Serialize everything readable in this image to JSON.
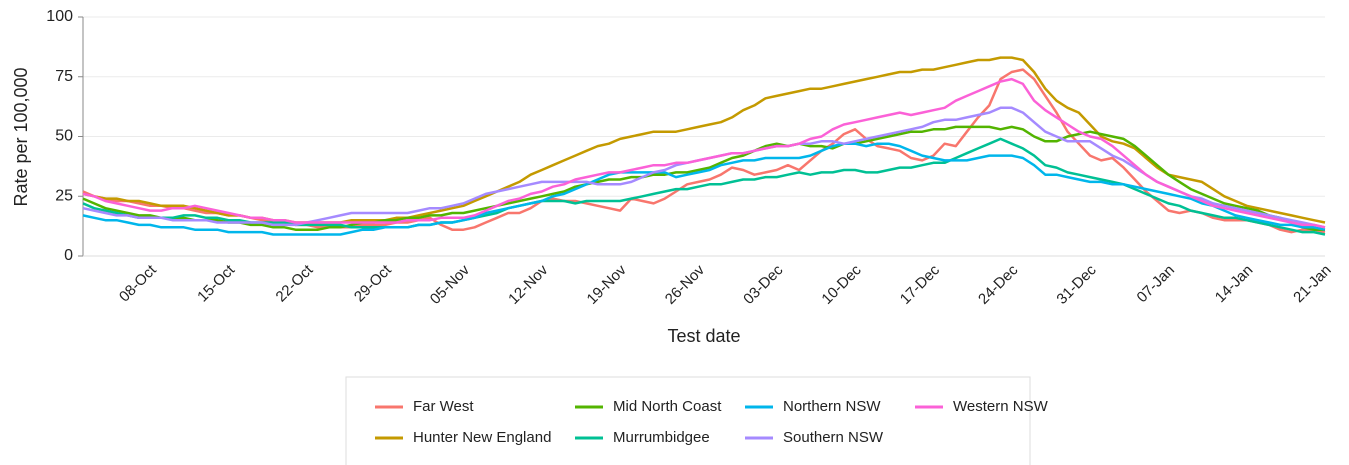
{
  "chart_data": {
    "type": "line",
    "x_label": "Test date",
    "y_label": "Rate per 100,000",
    "categories": [
      null,
      null,
      null,
      null,
      null,
      null,
      "08-Oct",
      null,
      null,
      null,
      null,
      null,
      null,
      "15-Oct",
      null,
      null,
      null,
      null,
      null,
      null,
      "22-Oct",
      null,
      null,
      null,
      null,
      null,
      null,
      "29-Oct",
      null,
      null,
      null,
      null,
      null,
      null,
      "05-Nov",
      null,
      null,
      null,
      null,
      null,
      null,
      "12-Nov",
      null,
      null,
      null,
      null,
      null,
      null,
      "19-Nov",
      null,
      null,
      null,
      null,
      null,
      null,
      "26-Nov",
      null,
      null,
      null,
      null,
      null,
      null,
      "03-Dec",
      null,
      null,
      null,
      null,
      null,
      null,
      "10-Dec",
      null,
      null,
      null,
      null,
      null,
      null,
      "17-Dec",
      null,
      null,
      null,
      null,
      null,
      null,
      "24-Dec",
      null,
      null,
      null,
      null,
      null,
      null,
      "31-Dec",
      null,
      null,
      null,
      null,
      null,
      null,
      "07-Jan",
      null,
      null,
      null,
      null,
      null,
      null,
      "14-Jan",
      null,
      null,
      null,
      null,
      null,
      null,
      "21-Jan"
    ],
    "series": [
      {
        "name": "Far West",
        "color": "#f8766d",
        "values": [
          27,
          25,
          24,
          23,
          23,
          22,
          21,
          21,
          20,
          20,
          19,
          18,
          18,
          17,
          17,
          16,
          15,
          14,
          14,
          13,
          13,
          12,
          12,
          12,
          12,
          13,
          13,
          13,
          14,
          14,
          15,
          16,
          13,
          11,
          11,
          12,
          14,
          16,
          18,
          18,
          20,
          23,
          24,
          23,
          23,
          22,
          21,
          20,
          19,
          24,
          23,
          22,
          24,
          27,
          30,
          31,
          32,
          34,
          37,
          36,
          34,
          35,
          36,
          38,
          36,
          40,
          44,
          47,
          51,
          53,
          49,
          46,
          45,
          44,
          41,
          40,
          42,
          47,
          46,
          52,
          58,
          63,
          74,
          77,
          78,
          74,
          67,
          60,
          52,
          47,
          42,
          40,
          41,
          37,
          32,
          27,
          23,
          19,
          18,
          19,
          18,
          16,
          15,
          15,
          15,
          14,
          13,
          11,
          10,
          11,
          11,
          10
        ]
      },
      {
        "name": "Hunter New England",
        "color": "#c49a00",
        "values": [
          26,
          25,
          24,
          24,
          23,
          23,
          22,
          21,
          21,
          21,
          20,
          19,
          18,
          17,
          17,
          16,
          16,
          15,
          15,
          14,
          14,
          14,
          14,
          14,
          15,
          15,
          15,
          15,
          16,
          16,
          17,
          18,
          19,
          20,
          21,
          23,
          25,
          27,
          29,
          31,
          34,
          36,
          38,
          40,
          42,
          44,
          46,
          47,
          49,
          50,
          51,
          52,
          52,
          52,
          53,
          54,
          55,
          56,
          58,
          61,
          63,
          66,
          67,
          68,
          69,
          70,
          70,
          71,
          72,
          73,
          74,
          75,
          76,
          77,
          77,
          78,
          78,
          79,
          80,
          81,
          82,
          82,
          83,
          83,
          82,
          77,
          70,
          65,
          62,
          60,
          55,
          50,
          48,
          47,
          45,
          41,
          37,
          34,
          33,
          32,
          31,
          28,
          25,
          23,
          21,
          20,
          19,
          18,
          17,
          16,
          15,
          14
        ]
      },
      {
        "name": "Mid North Coast",
        "color": "#53b400",
        "values": [
          24,
          22,
          20,
          19,
          18,
          17,
          17,
          16,
          16,
          16,
          15,
          15,
          15,
          14,
          14,
          13,
          13,
          12,
          12,
          11,
          11,
          11,
          12,
          12,
          13,
          14,
          14,
          15,
          15,
          16,
          16,
          17,
          17,
          18,
          18,
          19,
          20,
          21,
          22,
          23,
          24,
          25,
          26,
          27,
          29,
          30,
          31,
          32,
          32,
          33,
          33,
          34,
          34,
          35,
          35,
          36,
          37,
          39,
          41,
          42,
          44,
          46,
          47,
          46,
          47,
          46,
          46,
          45,
          47,
          47,
          48,
          49,
          50,
          51,
          52,
          52,
          53,
          53,
          54,
          54,
          54,
          54,
          53,
          54,
          53,
          50,
          48,
          48,
          50,
          51,
          52,
          51,
          50,
          49,
          46,
          42,
          38,
          34,
          31,
          28,
          26,
          24,
          22,
          21,
          20,
          19,
          17,
          16,
          14,
          12,
          11,
          11
        ]
      },
      {
        "name": "Murrumbidgee",
        "color": "#00c094",
        "values": [
          22,
          20,
          19,
          18,
          17,
          16,
          16,
          16,
          16,
          17,
          17,
          16,
          16,
          15,
          15,
          14,
          14,
          14,
          14,
          13,
          13,
          13,
          13,
          13,
          12,
          12,
          12,
          12,
          12,
          12,
          13,
          13,
          14,
          14,
          15,
          16,
          17,
          18,
          20,
          21,
          22,
          23,
          23,
          23,
          22,
          23,
          23,
          23,
          23,
          24,
          25,
          26,
          27,
          28,
          28,
          29,
          30,
          30,
          31,
          32,
          32,
          33,
          33,
          34,
          35,
          34,
          35,
          35,
          36,
          36,
          35,
          35,
          36,
          37,
          37,
          38,
          39,
          39,
          41,
          43,
          45,
          47,
          49,
          47,
          45,
          42,
          38,
          37,
          35,
          34,
          33,
          32,
          31,
          30,
          28,
          26,
          24,
          22,
          21,
          19,
          18,
          17,
          16,
          16,
          15,
          14,
          13,
          12,
          11,
          10,
          10,
          9
        ]
      },
      {
        "name": "Northern NSW",
        "color": "#00b6eb",
        "values": [
          17,
          16,
          15,
          15,
          14,
          13,
          13,
          12,
          12,
          12,
          11,
          11,
          11,
          10,
          10,
          10,
          10,
          9,
          9,
          9,
          9,
          9,
          9,
          9,
          10,
          11,
          11,
          12,
          12,
          12,
          13,
          13,
          14,
          14,
          15,
          16,
          18,
          19,
          20,
          21,
          22,
          23,
          25,
          26,
          28,
          30,
          32,
          34,
          35,
          35,
          35,
          35,
          35,
          33,
          34,
          35,
          36,
          38,
          39,
          40,
          40,
          41,
          41,
          41,
          41,
          42,
          44,
          46,
          47,
          47,
          46,
          47,
          47,
          46,
          44,
          42,
          41,
          40,
          40,
          40,
          41,
          42,
          42,
          42,
          41,
          38,
          34,
          34,
          33,
          32,
          31,
          31,
          30,
          30,
          29,
          28,
          27,
          26,
          25,
          24,
          22,
          21,
          19,
          17,
          16,
          15,
          14,
          13,
          13,
          12,
          12,
          11
        ]
      },
      {
        "name": "Southern NSW",
        "color": "#a58aff",
        "values": [
          20,
          19,
          18,
          17,
          17,
          16,
          16,
          16,
          15,
          15,
          15,
          15,
          14,
          14,
          14,
          14,
          14,
          13,
          13,
          13,
          14,
          15,
          16,
          17,
          18,
          18,
          18,
          18,
          18,
          18,
          19,
          20,
          20,
          21,
          22,
          24,
          26,
          27,
          28,
          29,
          30,
          31,
          31,
          31,
          31,
          31,
          30,
          30,
          30,
          31,
          33,
          35,
          36,
          38,
          39,
          40,
          41,
          42,
          43,
          43,
          44,
          45,
          46,
          46,
          47,
          47,
          48,
          48,
          47,
          48,
          49,
          50,
          51,
          52,
          53,
          54,
          56,
          57,
          57,
          58,
          59,
          60,
          62,
          62,
          60,
          56,
          52,
          50,
          48,
          48,
          48,
          45,
          42,
          40,
          37,
          34,
          31,
          29,
          27,
          25,
          24,
          22,
          21,
          20,
          19,
          18,
          17,
          16,
          15,
          14,
          13,
          12
        ]
      },
      {
        "name": "Western NSW",
        "color": "#fb61d7",
        "values": [
          26,
          25,
          23,
          22,
          21,
          20,
          19,
          19,
          20,
          20,
          21,
          20,
          19,
          18,
          17,
          16,
          16,
          15,
          15,
          14,
          14,
          14,
          14,
          14,
          14,
          14,
          14,
          14,
          14,
          15,
          15,
          15,
          16,
          16,
          16,
          17,
          19,
          21,
          23,
          24,
          26,
          27,
          29,
          30,
          32,
          33,
          34,
          35,
          35,
          36,
          37,
          38,
          38,
          39,
          39,
          40,
          41,
          42,
          43,
          43,
          44,
          45,
          46,
          46,
          47,
          49,
          50,
          53,
          55,
          56,
          57,
          58,
          59,
          60,
          59,
          60,
          61,
          62,
          65,
          67,
          69,
          71,
          73,
          74,
          72,
          65,
          61,
          58,
          55,
          52,
          50,
          49,
          46,
          42,
          38,
          34,
          31,
          29,
          27,
          25,
          23,
          21,
          20,
          19,
          18,
          17,
          16,
          15,
          14,
          13,
          13,
          12
        ]
      }
    ],
    "ylim": [
      0,
      100
    ],
    "yticks": [
      0,
      25,
      50,
      75,
      100
    ],
    "grid": true,
    "legend": "bottom"
  }
}
